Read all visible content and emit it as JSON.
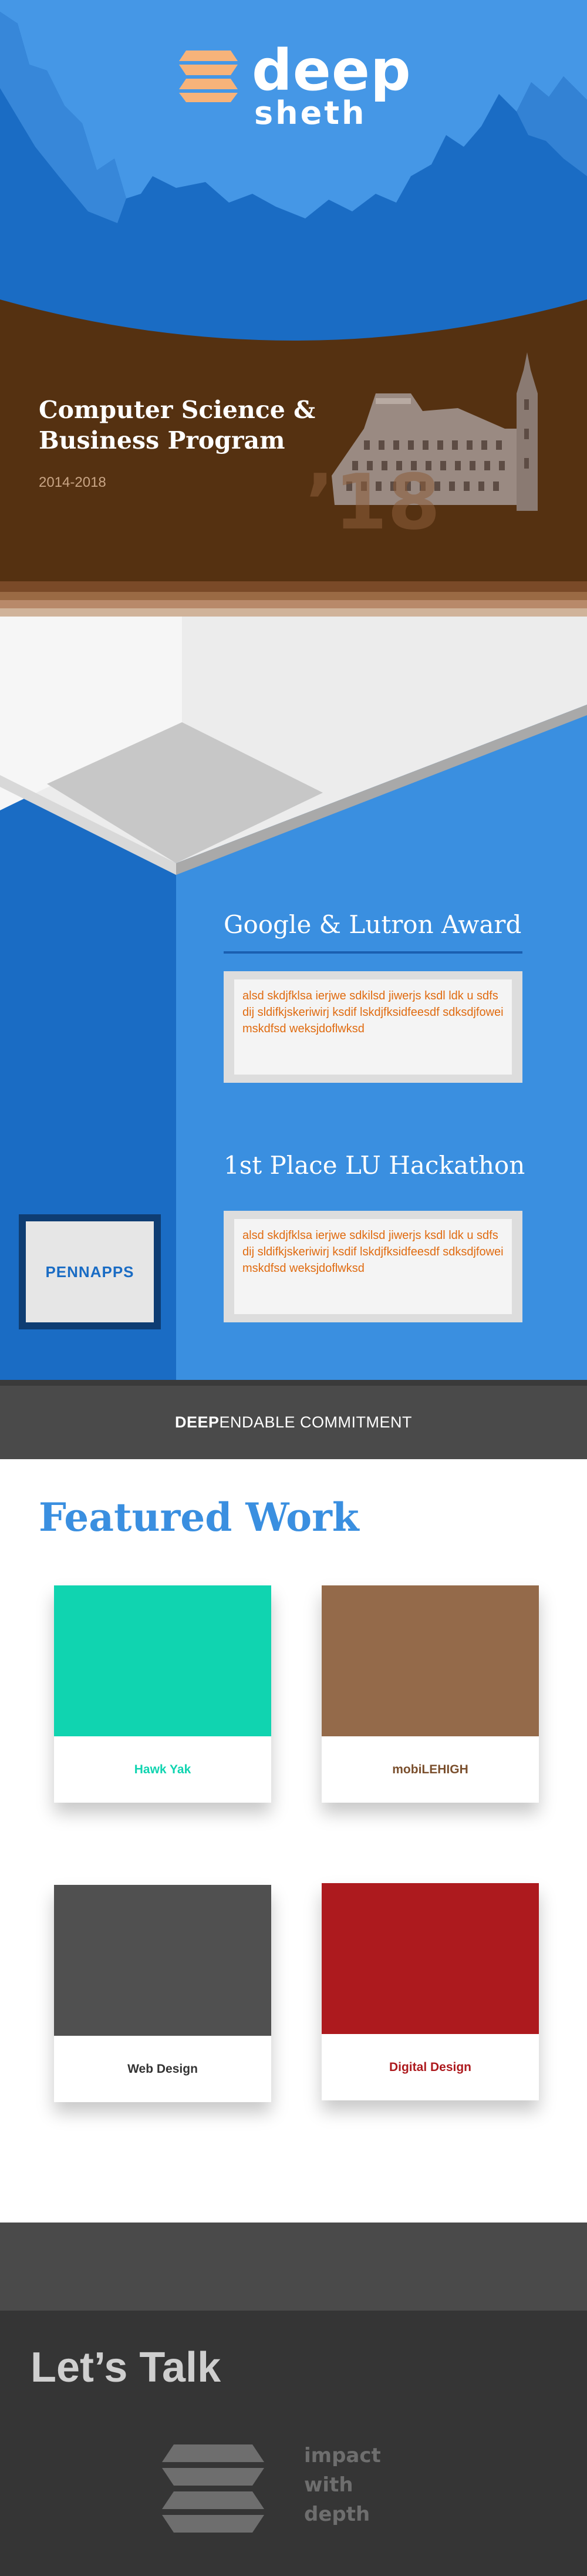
{
  "brand": {
    "name_line1": "deep",
    "name_line2": "sheth",
    "colors": {
      "hero_blue": "#1a6cc4",
      "accent_orange": "#f5b27a",
      "program_brown": "#553111"
    }
  },
  "program": {
    "title": "Computer Science & Business Program",
    "years": "2014-2018",
    "class_year": "’18"
  },
  "awards": [
    {
      "title": "Google & Lutron Award",
      "description": "alsd skdjfklsa ierjwe sdkilsd jiwerjs ksdl ldk u sdfsdij sldifkjskeriwirj ksdif lskdjfksidfeesdf sdksdjfoweimskdfsd weksjdoflwksd"
    },
    {
      "title": "1st Place LU Hackathon",
      "description": "alsd skdjfklsa ierjwe sdkilsd jiwerjs ksdl ldk u sdfsdij sldifkjskeriwirj ksdif lskdjfksidfeesdf sdksdjfoweimskdfsd weksjdoflwksd"
    }
  ],
  "sponsor": {
    "label": "PENNAPPS"
  },
  "commitment": {
    "strong": "DEEP",
    "rest": "ENDABLE COMMITMENT"
  },
  "featured": {
    "title": "Featured Work",
    "items": [
      {
        "label": "Hawk Yak",
        "color": "#10d4b0",
        "label_color": "#10d4b0"
      },
      {
        "label": "mobiLEHIGH",
        "color": "#946a4a",
        "label_color": "#7a4f2d"
      },
      {
        "label": "Web Design",
        "color": "#505050",
        "label_color": "#333333"
      },
      {
        "label": "Digital Design",
        "color": "#ad1a1e",
        "label_color": "#ad1a1e"
      }
    ]
  },
  "contact": {
    "title": "Let’s Talk",
    "tagline": [
      "impact",
      "with",
      "depth"
    ]
  }
}
